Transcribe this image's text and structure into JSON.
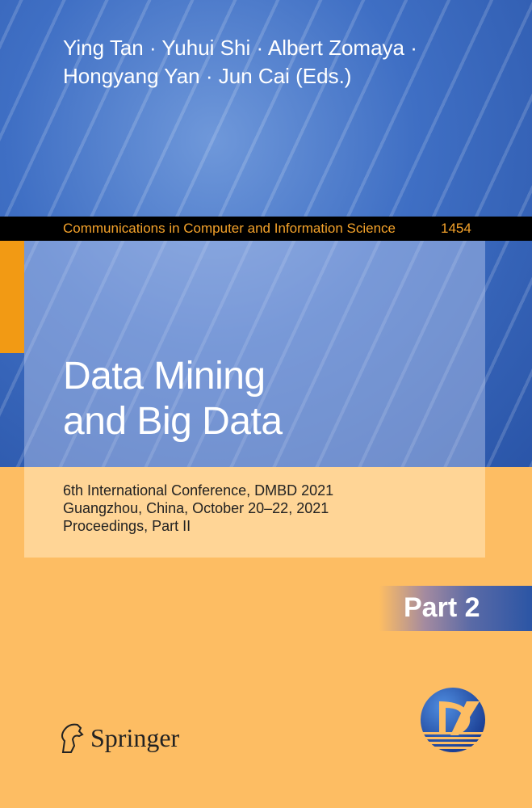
{
  "authors": {
    "line1": "Ying Tan · Yuhui Shi · Albert Zomaya ·",
    "line2": "Hongyang Yan · Jun Cai (Eds.)"
  },
  "series": {
    "name": "Communications in Computer and Information Science",
    "number": "1454"
  },
  "title": {
    "line1": "Data Mining",
    "line2": "and Big Data"
  },
  "subtitle": {
    "line1": "6th International Conference, DMBD 2021",
    "line2": "Guangzhou, China, October 20–22, 2021",
    "line3": "Proceedings, Part II"
  },
  "part_label": "Part 2",
  "publisher": {
    "name": "Springer",
    "icon": "springer-horse-icon"
  },
  "conference_logo": {
    "icon": "dmbd-logo",
    "text": "D"
  },
  "colors": {
    "blue": "#3f6fc4",
    "orange": "#fdbd63",
    "series_text": "#f4a22a",
    "accent_orange": "#f29a14"
  }
}
